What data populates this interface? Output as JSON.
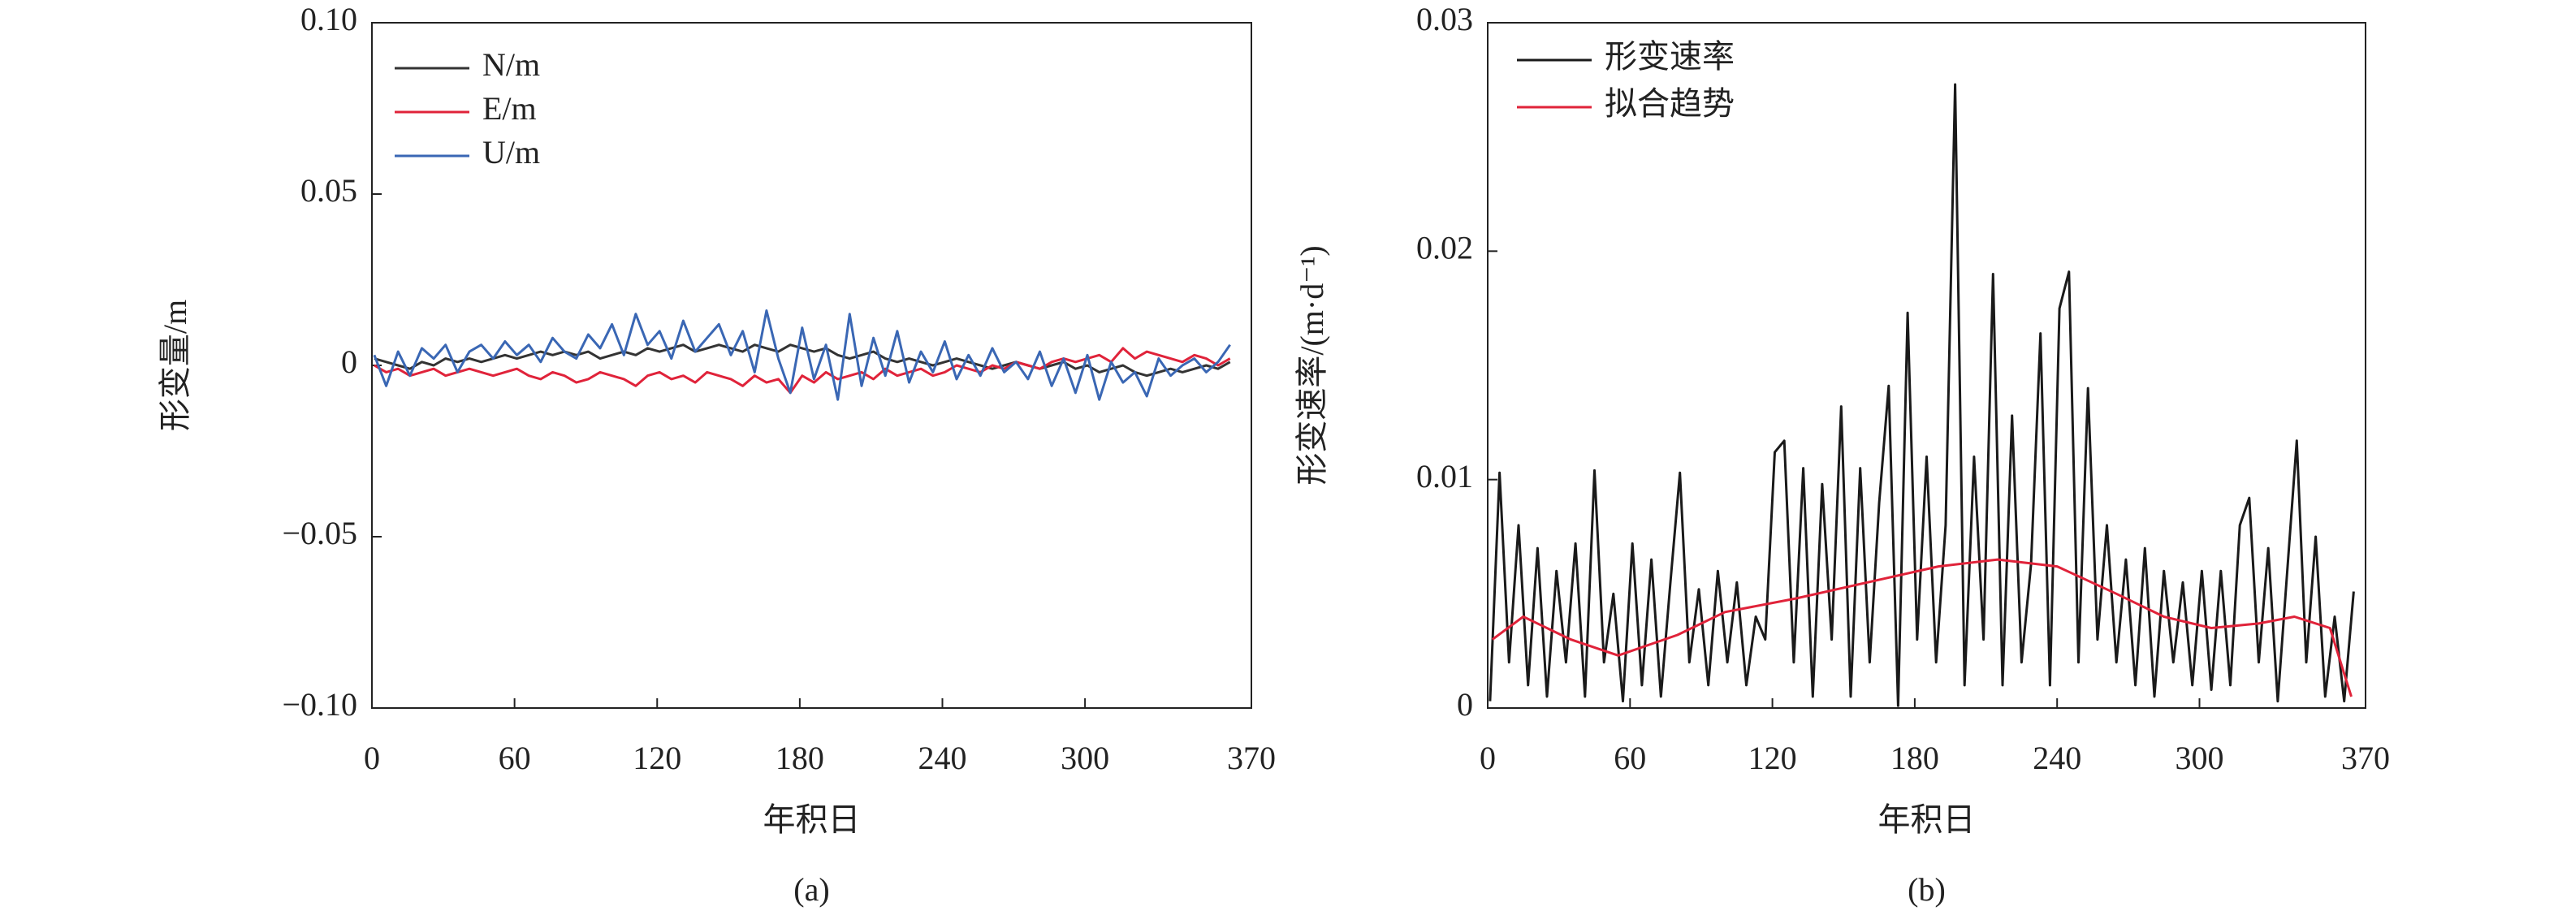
{
  "chart_data": [
    {
      "type": "line",
      "caption": "(a)",
      "xlabel": "年积日",
      "ylabel": "形变量/m",
      "xlim": [
        0,
        370
      ],
      "xticks": [
        0,
        60,
        120,
        180,
        240,
        300,
        370
      ],
      "ylim": [
        -0.1,
        0.1
      ],
      "yticks": [
        {
          "value": 0.1,
          "label": "0.10"
        },
        0.05,
        0,
        {
          "value": -0.05,
          "label": "−0.05"
        },
        {
          "value": -0.1,
          "label": "−0.10"
        }
      ],
      "legend": "upper left",
      "x": [
        1,
        6,
        11,
        16,
        21,
        26,
        31,
        36,
        41,
        46,
        51,
        56,
        61,
        66,
        71,
        76,
        81,
        86,
        91,
        96,
        101,
        106,
        111,
        116,
        121,
        126,
        131,
        136,
        141,
        146,
        151,
        156,
        161,
        166,
        171,
        176,
        181,
        186,
        191,
        196,
        201,
        206,
        211,
        216,
        221,
        226,
        231,
        236,
        241,
        246,
        251,
        256,
        261,
        266,
        271,
        276,
        281,
        286,
        291,
        296,
        301,
        306,
        311,
        316,
        321,
        326,
        331,
        336,
        341,
        346,
        351,
        356,
        361
      ],
      "series": [
        {
          "name": "N/m",
          "color": "#333333",
          "values": [
            0.002,
            0.001,
            0.0,
            -0.001,
            0.001,
            0.0,
            0.002,
            0.001,
            0.002,
            0.001,
            0.002,
            0.003,
            0.002,
            0.003,
            0.004,
            0.003,
            0.004,
            0.003,
            0.004,
            0.002,
            0.003,
            0.004,
            0.003,
            0.005,
            0.004,
            0.005,
            0.006,
            0.004,
            0.005,
            0.006,
            0.005,
            0.004,
            0.006,
            0.005,
            0.004,
            0.006,
            0.005,
            0.004,
            0.005,
            0.003,
            0.002,
            0.003,
            0.004,
            0.002,
            0.001,
            0.002,
            0.001,
            0.0,
            0.001,
            0.002,
            0.001,
            0.0,
            -0.001,
            0.0,
            0.001,
            0.0,
            -0.001,
            0.0,
            0.001,
            -0.001,
            0.0,
            -0.002,
            -0.001,
            0.0,
            -0.002,
            -0.003,
            -0.002,
            -0.001,
            -0.002,
            -0.001,
            0.0,
            -0.001,
            0.001
          ]
        },
        {
          "name": "E/m",
          "color": "#e0233a",
          "values": [
            0.0,
            -0.002,
            -0.001,
            -0.003,
            -0.002,
            -0.001,
            -0.003,
            -0.002,
            -0.001,
            -0.002,
            -0.003,
            -0.002,
            -0.001,
            -0.003,
            -0.004,
            -0.002,
            -0.003,
            -0.005,
            -0.004,
            -0.002,
            -0.003,
            -0.004,
            -0.006,
            -0.003,
            -0.002,
            -0.004,
            -0.003,
            -0.005,
            -0.002,
            -0.003,
            -0.004,
            -0.006,
            -0.003,
            -0.005,
            -0.004,
            -0.008,
            -0.003,
            -0.005,
            -0.002,
            -0.004,
            -0.003,
            -0.002,
            -0.004,
            -0.001,
            -0.003,
            -0.002,
            -0.001,
            -0.003,
            -0.002,
            0.0,
            -0.001,
            -0.002,
            0.0,
            -0.001,
            0.001,
            0.0,
            -0.001,
            0.001,
            0.002,
            0.001,
            0.002,
            0.003,
            0.001,
            0.005,
            0.002,
            0.004,
            0.003,
            0.002,
            0.001,
            0.003,
            0.002,
            0.0,
            0.002
          ]
        },
        {
          "name": "U/m",
          "color": "#3a67b4",
          "values": [
            0.003,
            -0.006,
            0.004,
            -0.003,
            0.005,
            0.002,
            0.006,
            -0.002,
            0.004,
            0.006,
            0.002,
            0.007,
            0.003,
            0.006,
            0.001,
            0.008,
            0.004,
            0.002,
            0.009,
            0.005,
            0.012,
            0.003,
            0.015,
            0.006,
            0.01,
            0.002,
            0.013,
            0.004,
            0.008,
            0.012,
            0.003,
            0.01,
            -0.002,
            0.016,
            0.002,
            -0.008,
            0.011,
            -0.004,
            0.006,
            -0.01,
            0.015,
            -0.006,
            0.008,
            -0.003,
            0.01,
            -0.005,
            0.004,
            -0.002,
            0.007,
            -0.004,
            0.003,
            -0.003,
            0.005,
            -0.002,
            0.001,
            -0.004,
            0.004,
            -0.006,
            0.002,
            -0.008,
            0.003,
            -0.01,
            0.001,
            -0.005,
            -0.002,
            -0.009,
            0.002,
            -0.003,
            0.0,
            0.002,
            -0.002,
            0.001,
            0.006
          ]
        }
      ]
    },
    {
      "type": "line",
      "caption": "(b)",
      "xlabel": "年积日",
      "ylabel": "形变速率/(m·d⁻¹)",
      "xlim": [
        0,
        370
      ],
      "xticks": [
        0,
        60,
        120,
        180,
        240,
        300,
        370
      ],
      "ylim": [
        0,
        0.03
      ],
      "yticks": [
        0.03,
        0.02,
        0.01,
        0
      ],
      "legend": "upper left",
      "series": [
        {
          "name": "形变速率",
          "color": "#1a1a1a",
          "x": [
            1,
            5,
            9,
            13,
            17,
            21,
            25,
            29,
            33,
            37,
            41,
            45,
            49,
            53,
            57,
            61,
            65,
            69,
            73,
            77,
            81,
            85,
            89,
            93,
            97,
            101,
            105,
            109,
            113,
            117,
            121,
            125,
            129,
            133,
            137,
            141,
            145,
            149,
            153,
            157,
            161,
            165,
            169,
            173,
            177,
            181,
            185,
            189,
            193,
            197,
            201,
            205,
            209,
            213,
            217,
            221,
            225,
            229,
            233,
            237,
            241,
            245,
            249,
            253,
            257,
            261,
            265,
            269,
            273,
            277,
            281,
            285,
            289,
            293,
            297,
            301,
            305,
            309,
            313,
            317,
            321,
            325,
            329,
            333,
            337,
            341,
            345,
            349,
            353,
            357,
            361,
            365
          ],
          "values": [
            0.0003,
            0.0103,
            0.002,
            0.008,
            0.001,
            0.007,
            0.0005,
            0.006,
            0.002,
            0.0072,
            0.0005,
            0.0104,
            0.002,
            0.005,
            0.0003,
            0.0072,
            0.001,
            0.0065,
            0.0005,
            0.0055,
            0.0103,
            0.002,
            0.0052,
            0.001,
            0.006,
            0.002,
            0.0055,
            0.001,
            0.004,
            0.003,
            0.0112,
            0.0117,
            0.002,
            0.0105,
            0.0005,
            0.0098,
            0.003,
            0.0132,
            0.0005,
            0.0105,
            0.002,
            0.009,
            0.0141,
            0.0001,
            0.0173,
            0.003,
            0.011,
            0.002,
            0.008,
            0.0273,
            0.001,
            0.011,
            0.003,
            0.019,
            0.001,
            0.0128,
            0.002,
            0.0063,
            0.0164,
            0.001,
            0.0175,
            0.0191,
            0.002,
            0.014,
            0.003,
            0.008,
            0.002,
            0.0065,
            0.001,
            0.007,
            0.0005,
            0.006,
            0.002,
            0.0055,
            0.001,
            0.006,
            0.0008,
            0.006,
            0.001,
            0.008,
            0.0092,
            0.002,
            0.007,
            0.0003,
            0.006,
            0.0117,
            0.002,
            0.0075,
            0.0005,
            0.004,
            0.0003,
            0.0051
          ]
        },
        {
          "name": "拟合趋势",
          "color": "#e0233a",
          "x": [
            2,
            15,
            35,
            55,
            80,
            100,
            130,
            160,
            190,
            215,
            240,
            265,
            285,
            305,
            325,
            340,
            355,
            364
          ],
          "values": [
            0.003,
            0.004,
            0.003,
            0.0023,
            0.0032,
            0.0042,
            0.0048,
            0.0055,
            0.0062,
            0.0065,
            0.0062,
            0.005,
            0.004,
            0.0035,
            0.0037,
            0.004,
            0.0035,
            0.0005
          ]
        }
      ]
    }
  ]
}
